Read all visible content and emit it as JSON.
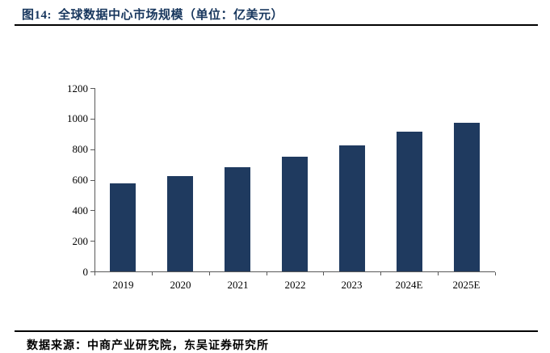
{
  "figure": {
    "label": "图14:",
    "title": "全球数据中心市场规模（单位：亿美元）",
    "source": "数据来源：中商产业研究院，东吴证券研究所"
  },
  "colors": {
    "title_text": "#17365D",
    "bar_fill": "#1F3A5F",
    "axis": "#595959",
    "rule": "#000000",
    "tick_label": "#000000"
  },
  "chart_data": {
    "type": "bar",
    "categories": [
      "2019",
      "2020",
      "2021",
      "2022",
      "2023",
      "2024E",
      "2025E"
    ],
    "values": [
      575,
      622,
      684,
      753,
      827,
      912,
      973
    ],
    "title": "全球数据中心市场规模",
    "unit": "亿美元",
    "xlabel": "",
    "ylabel": "",
    "ylim": [
      0,
      1200
    ],
    "y_ticks": [
      0,
      200,
      400,
      600,
      800,
      1000,
      1200
    ],
    "grid": false,
    "legend": false
  }
}
